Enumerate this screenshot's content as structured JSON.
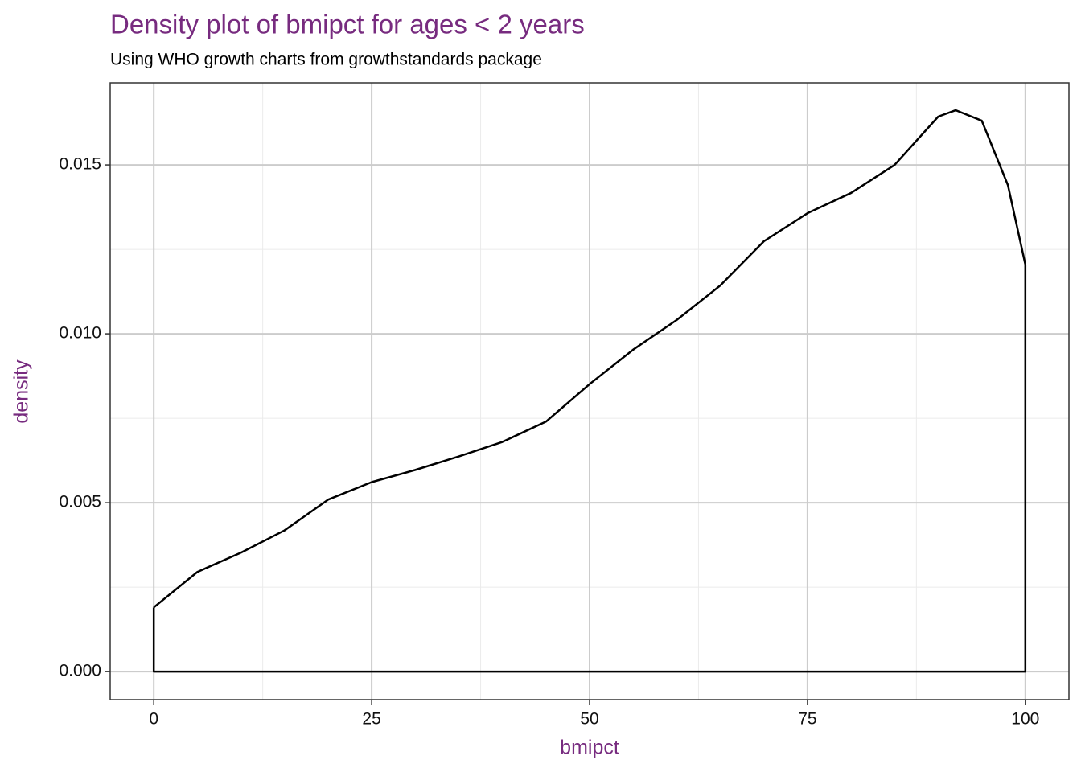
{
  "chart_data": {
    "type": "density",
    "title": "Density plot of bmipct for ages < 2 years",
    "subtitle": "Using WHO growth charts from growthstandards package",
    "x_label": "bmipct",
    "y_label": "density",
    "x": [
      0,
      5,
      10,
      15,
      20,
      25,
      30,
      35,
      40,
      45,
      50,
      55,
      60,
      65,
      70,
      75,
      80,
      85,
      90,
      92,
      95,
      98,
      100
    ],
    "values": [
      0.0019,
      0.00295,
      0.00352,
      0.00418,
      0.00509,
      0.00561,
      0.00597,
      0.00637,
      0.0068,
      0.0074,
      0.00851,
      0.00953,
      0.01041,
      0.01143,
      0.01274,
      0.01357,
      0.01417,
      0.015,
      0.01643,
      0.01662,
      0.01631,
      0.0144,
      0.01205
    ],
    "color": "#000000",
    "title_color": "#772b7f",
    "xlim": [
      -5,
      105
    ],
    "ylim": [
      -0.00083,
      0.01743
    ],
    "xticks": [
      0,
      25,
      50,
      75,
      100
    ],
    "yticks": [
      {
        "value": 0,
        "label": "0.000"
      },
      {
        "value": 0.005,
        "label": "0.005"
      },
      {
        "value": 0.01,
        "label": "0.010"
      },
      {
        "value": 0.015,
        "label": "0.015"
      }
    ],
    "x_minor_grid": [
      12.5,
      37.5,
      62.5,
      87.5
    ],
    "y_minor_grid": [
      0.0025,
      0.0075,
      0.0125
    ],
    "grid": true
  }
}
